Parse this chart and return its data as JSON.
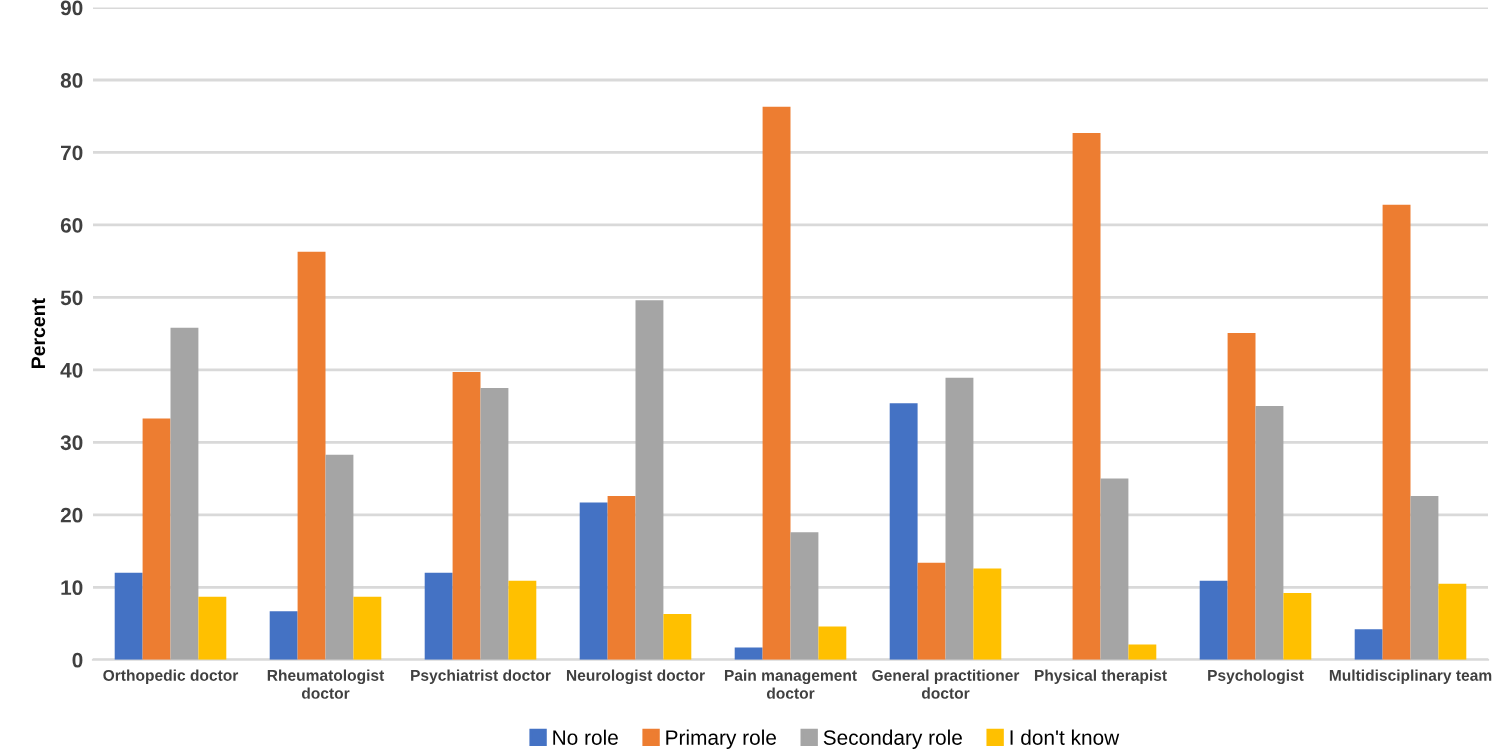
{
  "chart_data": {
    "type": "bar",
    "ylabel": "Percent",
    "categories": [
      "Orthopedic doctor",
      "Rheumatologist\ndoctor",
      "Psychiatrist doctor",
      "Neurologist doctor",
      "Pain management\ndoctor",
      "General practitioner\ndoctor",
      "Physical therapist",
      "Psychologist",
      "Multidisciplinary team"
    ],
    "series": [
      {
        "name": "No role",
        "color": "#4472c4",
        "values": [
          12,
          6.7,
          12,
          21.7,
          1.7,
          35.4,
          0,
          10.9,
          4.2
        ]
      },
      {
        "name": "Primary role",
        "color": "#ed7d31",
        "values": [
          33.3,
          56.3,
          39.7,
          22.6,
          76.3,
          13.4,
          72.7,
          45.1,
          62.8
        ]
      },
      {
        "name": "Secondary role",
        "color": "#a5a5a5",
        "values": [
          45.8,
          28.3,
          37.5,
          49.6,
          17.6,
          38.9,
          25,
          35,
          22.6
        ]
      },
      {
        "name": "I don't know",
        "color": "#ffc000",
        "values": [
          8.7,
          8.7,
          10.9,
          6.3,
          4.6,
          12.6,
          2.1,
          9.2,
          10.5
        ]
      }
    ],
    "ylim": [
      0,
      90
    ],
    "yticks": [
      0,
      10,
      20,
      30,
      40,
      50,
      60,
      70,
      80,
      90
    ],
    "grid": "y",
    "legend": "bottom"
  }
}
